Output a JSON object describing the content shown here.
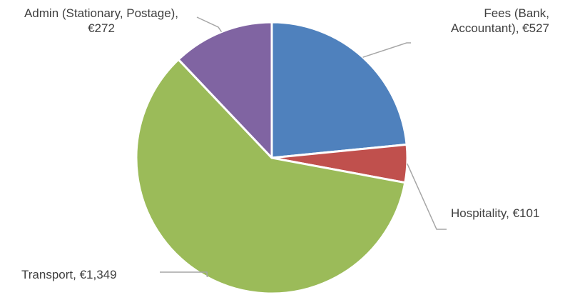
{
  "chart_data": {
    "type": "pie",
    "title": "",
    "currency": "€",
    "slices": [
      {
        "category": "Fees (Bank, Accountant)",
        "value": 527,
        "color": "#4F81BD",
        "label_lines": [
          "Fees (Bank,",
          "Accountant), €527"
        ]
      },
      {
        "category": "Hospitality",
        "value": 101,
        "color": "#C0504D",
        "label_lines": [
          "Hospitality, €101"
        ]
      },
      {
        "category": "Transport",
        "value": 1349,
        "color": "#9BBB59",
        "label_lines": [
          "Transport, €1,349"
        ]
      },
      {
        "category": "Admin (Stationary, Postage)",
        "value": 272,
        "color": "#8064A2",
        "label_lines": [
          "Admin (Stationary, Postage),",
          "€272"
        ]
      }
    ],
    "start_angle": "12 o'clock, clockwise",
    "slice_border": "#ffffff",
    "leader_line_color": "#A6A6A6"
  }
}
